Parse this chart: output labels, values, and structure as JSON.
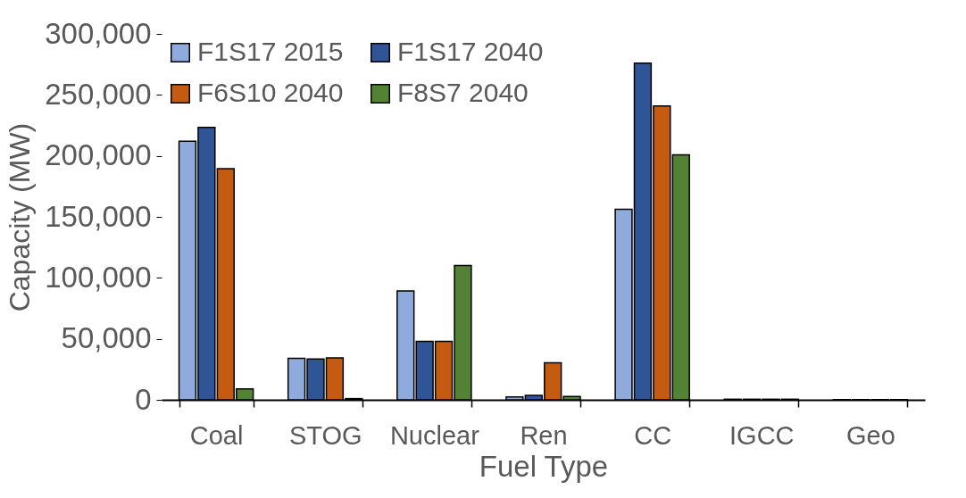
{
  "chart_data": {
    "type": "bar",
    "xlabel": "Fuel Type",
    "ylabel": "Capacity (MW)",
    "categories": [
      "Coal",
      "STOG",
      "Nuclear",
      "Ren",
      "CC",
      "IGCC",
      "Geo"
    ],
    "series": [
      {
        "name": "F1S17 2015",
        "color": "#8faadc",
        "values": [
          212000,
          34000,
          89300,
          2400,
          156300,
          500,
          200
        ]
      },
      {
        "name": "F1S17 2040",
        "color": "#2f5597",
        "values": [
          223300,
          33500,
          48000,
          3600,
          276000,
          500,
          200
        ]
      },
      {
        "name": "F6S10 2040",
        "color": "#c55a11",
        "values": [
          189500,
          34400,
          48000,
          30300,
          240900,
          500,
          200
        ]
      },
      {
        "name": "F8S7 2040",
        "color": "#548235",
        "values": [
          9000,
          1000,
          110200,
          2700,
          200800,
          500,
          200
        ]
      }
    ],
    "ylim": [
      0,
      300000
    ],
    "yticks": [
      {
        "value": 0,
        "label": "0"
      },
      {
        "value": 50000,
        "label": "50,000"
      },
      {
        "value": 100000,
        "label": "100,000"
      },
      {
        "value": 150000,
        "label": "150,000"
      },
      {
        "value": 200000,
        "label": "200,000"
      },
      {
        "value": 250000,
        "label": "250,000"
      },
      {
        "value": 300000,
        "label": "300,000"
      }
    ],
    "grid": false,
    "legend": "top left"
  }
}
